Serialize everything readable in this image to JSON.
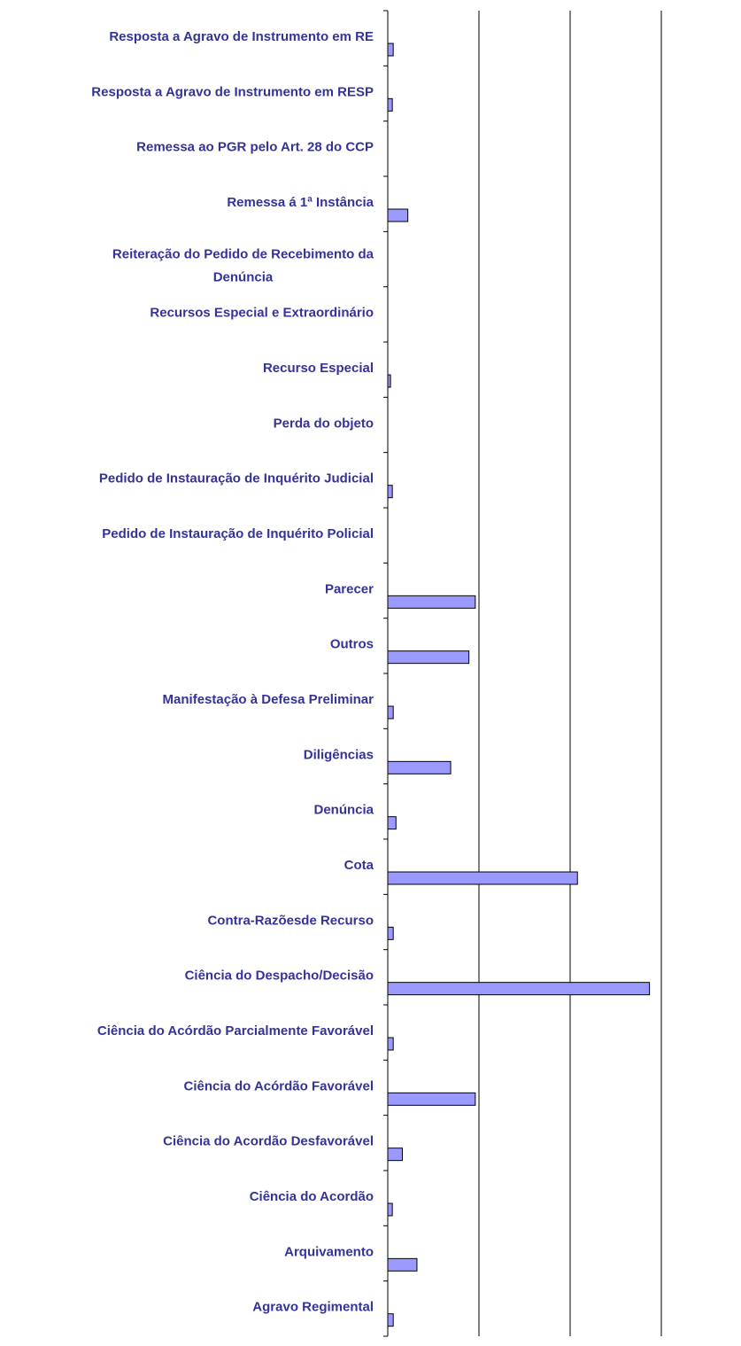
{
  "chart_data": {
    "type": "barh",
    "categories": [
      "Resposta a Agravo de Instrumento em RE",
      "Resposta a Agravo de Instrumento em RESP",
      "Remessa ao PGR pelo Art. 28 do CCP",
      "Remessa á 1ª Instância",
      "Reiteração do Pedido de Recebimento da Denúncia",
      "Recursos Especial e Extraordinário",
      "Recurso Especial",
      "Perda do objeto",
      "Pedido de Instauração de Inquérito Judicial",
      "Pedido de Instauração de Inquérito Policial",
      "Parecer",
      "Outros",
      "Manifestação à Defesa Preliminar",
      "Diligências",
      "Denúncia",
      "Cota",
      "Contra-Razõesde Recurso",
      "Ciência do Despacho/Decisão",
      "Ciência do Acórdão Parcialmente Favorável",
      "Ciência do Acórdão Favorável",
      "Ciência do Acordão Desfavorável",
      "Ciência do Acordão",
      "Arquivamento",
      "Agravo Regimental"
    ],
    "values": [
      6,
      5,
      0,
      22,
      0,
      0,
      3,
      0,
      5,
      0,
      96,
      89,
      6,
      69,
      9,
      208,
      6,
      287,
      6,
      96,
      16,
      5,
      32,
      6
    ],
    "color": "#9999ff",
    "xlim": [
      0,
      300
    ],
    "xticks": [
      0,
      100,
      200,
      300
    ],
    "grid": true
  }
}
